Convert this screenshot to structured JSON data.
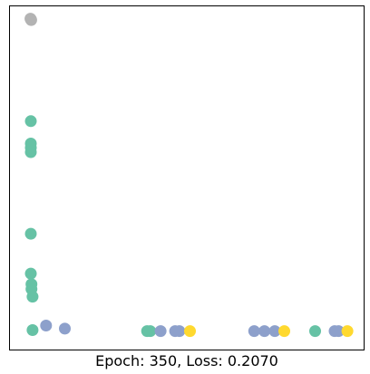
{
  "chart_data": {
    "type": "scatter",
    "title": "",
    "xlabel": "Epoch: 350, Loss: 0.2070",
    "ylabel": "",
    "grid": false,
    "legend": "none",
    "xlim": [
      0,
      1
    ],
    "ylim": [
      0,
      1
    ],
    "colors": {
      "teal": "#66c2a5",
      "blue": "#8da0cb",
      "yellow": "#ffd92f",
      "gray": "#b3b3b3"
    },
    "points": [
      {
        "x": 0.06,
        "y": 0.961,
        "color": "gray"
      },
      {
        "x": 0.061,
        "y": 0.959,
        "color": "gray"
      },
      {
        "x": 0.059,
        "y": 0.963,
        "color": "gray"
      },
      {
        "x": 0.06,
        "y": 0.665,
        "color": "teal"
      },
      {
        "x": 0.06,
        "y": 0.6,
        "color": "teal"
      },
      {
        "x": 0.06,
        "y": 0.588,
        "color": "teal"
      },
      {
        "x": 0.06,
        "y": 0.575,
        "color": "teal"
      },
      {
        "x": 0.06,
        "y": 0.338,
        "color": "teal"
      },
      {
        "x": 0.06,
        "y": 0.222,
        "color": "teal"
      },
      {
        "x": 0.062,
        "y": 0.191,
        "color": "teal"
      },
      {
        "x": 0.062,
        "y": 0.177,
        "color": "teal"
      },
      {
        "x": 0.065,
        "y": 0.155,
        "color": "teal"
      },
      {
        "x": 0.065,
        "y": 0.058,
        "color": "teal"
      },
      {
        "x": 0.103,
        "y": 0.071,
        "color": "blue"
      },
      {
        "x": 0.156,
        "y": 0.062,
        "color": "blue"
      },
      {
        "x": 0.388,
        "y": 0.055,
        "color": "teal"
      },
      {
        "x": 0.397,
        "y": 0.055,
        "color": "teal"
      },
      {
        "x": 0.426,
        "y": 0.055,
        "color": "blue"
      },
      {
        "x": 0.467,
        "y": 0.055,
        "color": "blue"
      },
      {
        "x": 0.479,
        "y": 0.055,
        "color": "blue"
      },
      {
        "x": 0.509,
        "y": 0.055,
        "color": "yellow"
      },
      {
        "x": 0.69,
        "y": 0.055,
        "color": "blue"
      },
      {
        "x": 0.719,
        "y": 0.055,
        "color": "blue"
      },
      {
        "x": 0.748,
        "y": 0.055,
        "color": "blue"
      },
      {
        "x": 0.775,
        "y": 0.055,
        "color": "yellow"
      },
      {
        "x": 0.862,
        "y": 0.055,
        "color": "teal"
      },
      {
        "x": 0.917,
        "y": 0.055,
        "color": "blue"
      },
      {
        "x": 0.928,
        "y": 0.055,
        "color": "blue"
      },
      {
        "x": 0.953,
        "y": 0.055,
        "color": "yellow"
      }
    ]
  }
}
